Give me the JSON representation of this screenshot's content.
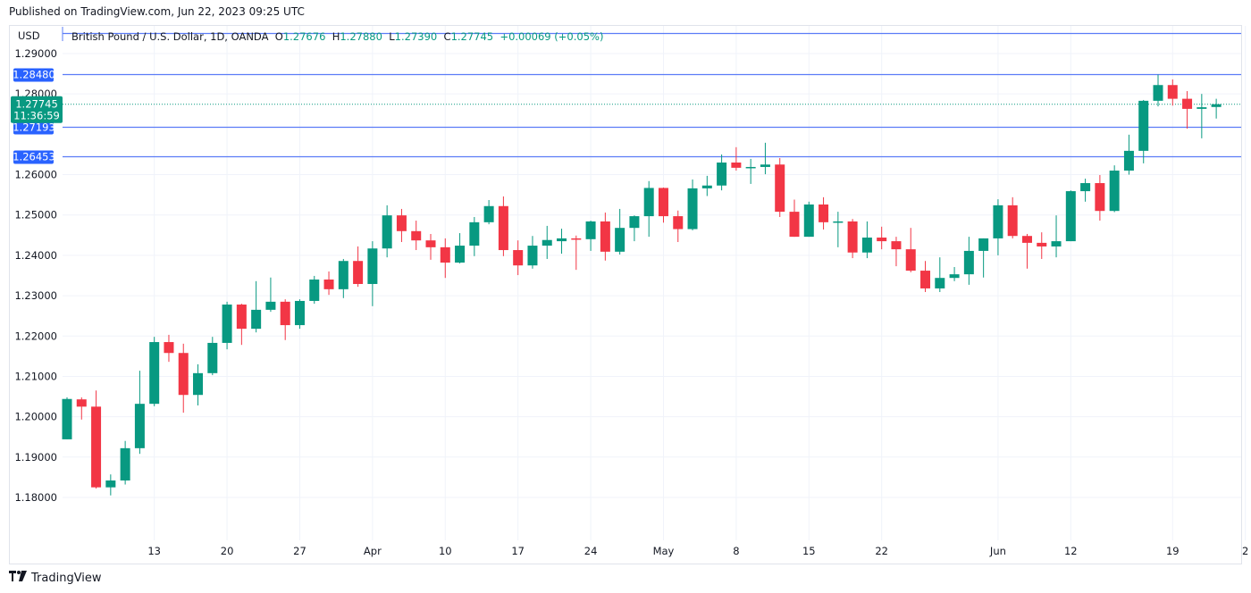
{
  "header": {
    "published": "Published on TradingView.com, Jun 22, 2023 09:25 UTC"
  },
  "legend": {
    "symbol": "British Pound / U.S. Dollar, 1D, OANDA",
    "o_label": "O",
    "o": "1.27676",
    "h_label": "H",
    "h": "1.27880",
    "l_label": "L",
    "l": "1.27390",
    "c_label": "C",
    "c": "1.27745",
    "change": "+0.00069 (+0.05%)"
  },
  "footer": {
    "brand": "TradingView",
    "logo_icon": "tradingview-logo-icon"
  },
  "colors": {
    "up": "#089981",
    "down": "#f23645",
    "hline": "#2962ff",
    "grid": "#f0f3fa"
  },
  "chart_data": {
    "type": "candlestick",
    "title": "British Pound / U.S. Dollar, 1D, OANDA",
    "currency_label": "USD",
    "ylim": [
      1.1715,
      1.2965
    ],
    "y_ticks": [
      "1.29000",
      "1.28000",
      "1.26000",
      "1.25000",
      "1.24000",
      "1.23000",
      "1.22000",
      "1.21000",
      "1.20000",
      "1.19000",
      "1.18000"
    ],
    "x_ticks": [
      {
        "label": "13",
        "index": 6
      },
      {
        "label": "20",
        "index": 11
      },
      {
        "label": "27",
        "index": 16
      },
      {
        "label": "Apr",
        "index": 21
      },
      {
        "label": "10",
        "index": 26
      },
      {
        "label": "17",
        "index": 31
      },
      {
        "label": "24",
        "index": 36
      },
      {
        "label": "May",
        "index": 41
      },
      {
        "label": "8",
        "index": 46
      },
      {
        "label": "15",
        "index": 51
      },
      {
        "label": "22",
        "index": 56
      },
      {
        "label": "Jun",
        "index": 64
      },
      {
        "label": "12",
        "index": 69
      },
      {
        "label": "19",
        "index": 76
      },
      {
        "label": "2",
        "index": 81
      }
    ],
    "horizontal_lines": [
      {
        "price": 1.2951,
        "label": ""
      },
      {
        "price": 1.2848,
        "label": "1.28480"
      },
      {
        "price": 1.27193,
        "label": "1.27193"
      },
      {
        "price": 1.26453,
        "label": "1.26453"
      }
    ],
    "last_price": {
      "price": 1.27745,
      "label": "1.27745",
      "countdown": "11:36:59"
    },
    "ohlc": [
      [
        1.1944,
        1.2048,
        1.1944,
        1.2044
      ],
      [
        1.2043,
        1.2048,
        1.1993,
        1.2025
      ],
      [
        1.2025,
        1.2065,
        1.1822,
        1.1825
      ],
      [
        1.1825,
        1.1857,
        1.1805,
        1.1842
      ],
      [
        1.1842,
        1.194,
        1.1832,
        1.1922
      ],
      [
        1.1922,
        1.2114,
        1.1908,
        1.2032
      ],
      [
        1.2032,
        1.2198,
        1.2026,
        1.2185
      ],
      [
        1.2185,
        1.2203,
        1.2136,
        1.2158
      ],
      [
        1.2158,
        1.2181,
        1.201,
        1.2054
      ],
      [
        1.2054,
        1.213,
        1.2028,
        1.2108
      ],
      [
        1.2108,
        1.2198,
        1.2103,
        1.2183
      ],
      [
        1.2183,
        1.2285,
        1.2167,
        1.2278
      ],
      [
        1.2278,
        1.228,
        1.2178,
        1.2218
      ],
      [
        1.2218,
        1.2336,
        1.2209,
        1.2265
      ],
      [
        1.2265,
        1.2345,
        1.226,
        1.2285
      ],
      [
        1.2285,
        1.2291,
        1.219,
        1.2227
      ],
      [
        1.2227,
        1.2291,
        1.2218,
        1.2287
      ],
      [
        1.2287,
        1.2349,
        1.228,
        1.234
      ],
      [
        1.234,
        1.236,
        1.2302,
        1.2316
      ],
      [
        1.2316,
        1.2391,
        1.2294,
        1.2386
      ],
      [
        1.2386,
        1.2422,
        1.2322,
        1.2329
      ],
      [
        1.2329,
        1.2435,
        1.2274,
        1.2417
      ],
      [
        1.2417,
        1.2524,
        1.2395,
        1.2499
      ],
      [
        1.2499,
        1.2515,
        1.2433,
        1.246
      ],
      [
        1.246,
        1.2486,
        1.2413,
        1.2437
      ],
      [
        1.2437,
        1.2453,
        1.2389,
        1.242
      ],
      [
        1.242,
        1.2442,
        1.2344,
        1.2382
      ],
      [
        1.2382,
        1.2455,
        1.238,
        1.2424
      ],
      [
        1.2424,
        1.2495,
        1.2398,
        1.2482
      ],
      [
        1.2482,
        1.2537,
        1.2477,
        1.2522
      ],
      [
        1.2522,
        1.2546,
        1.2398,
        1.2413
      ],
      [
        1.2413,
        1.2437,
        1.2351,
        1.2375
      ],
      [
        1.2375,
        1.2448,
        1.2367,
        1.2424
      ],
      [
        1.2424,
        1.2473,
        1.2391,
        1.2438
      ],
      [
        1.2435,
        1.2466,
        1.2404,
        1.2442
      ],
      [
        1.2442,
        1.2449,
        1.2364,
        1.244
      ],
      [
        1.244,
        1.2486,
        1.2411,
        1.2484
      ],
      [
        1.2484,
        1.2506,
        1.2387,
        1.2409
      ],
      [
        1.2409,
        1.2515,
        1.2402,
        1.2468
      ],
      [
        1.2468,
        1.2499,
        1.2435,
        1.2497
      ],
      [
        1.2497,
        1.2584,
        1.2446,
        1.2567
      ],
      [
        1.2567,
        1.2568,
        1.2481,
        1.2497
      ],
      [
        1.2497,
        1.2511,
        1.2433,
        1.2465
      ],
      [
        1.2465,
        1.2588,
        1.2462,
        1.2566
      ],
      [
        1.2566,
        1.2597,
        1.2547,
        1.2573
      ],
      [
        1.2573,
        1.265,
        1.2561,
        1.263
      ],
      [
        1.263,
        1.2668,
        1.261,
        1.2617
      ],
      [
        1.2617,
        1.2639,
        1.2577,
        1.2619
      ],
      [
        1.2619,
        1.2679,
        1.2601,
        1.2625
      ],
      [
        1.2625,
        1.2641,
        1.2495,
        1.2508
      ],
      [
        1.2508,
        1.2538,
        1.2446,
        1.2446
      ],
      [
        1.2446,
        1.2533,
        1.2446,
        1.2526
      ],
      [
        1.2526,
        1.2544,
        1.2464,
        1.2482
      ],
      [
        1.2483,
        1.2508,
        1.242,
        1.2484
      ],
      [
        1.2484,
        1.249,
        1.2393,
        1.2407
      ],
      [
        1.2407,
        1.2484,
        1.2393,
        1.2444
      ],
      [
        1.2444,
        1.2471,
        1.2415,
        1.2435
      ],
      [
        1.2435,
        1.2446,
        1.2373,
        1.2415
      ],
      [
        1.2415,
        1.2468,
        1.2358,
        1.2362
      ],
      [
        1.2362,
        1.2386,
        1.2309,
        1.2318
      ],
      [
        1.2318,
        1.2395,
        1.2309,
        1.2344
      ],
      [
        1.2344,
        1.2371,
        1.2336,
        1.2353
      ],
      [
        1.2353,
        1.2446,
        1.2327,
        1.2411
      ],
      [
        1.2411,
        1.2442,
        1.2345,
        1.2442
      ],
      [
        1.2442,
        1.2539,
        1.24,
        1.2524
      ],
      [
        1.2524,
        1.2544,
        1.2442,
        1.2448
      ],
      [
        1.2448,
        1.2453,
        1.2367,
        1.2431
      ],
      [
        1.2431,
        1.2457,
        1.2391,
        1.2422
      ],
      [
        1.2422,
        1.2499,
        1.2395,
        1.2435
      ],
      [
        1.2435,
        1.2561,
        1.2435,
        1.2559
      ],
      [
        1.2559,
        1.259,
        1.2533,
        1.2579
      ],
      [
        1.2579,
        1.2599,
        1.2486,
        1.251
      ],
      [
        1.251,
        1.2623,
        1.2507,
        1.261
      ],
      [
        1.261,
        1.2699,
        1.26,
        1.2659
      ],
      [
        1.2659,
        1.2785,
        1.2628,
        1.2783
      ],
      [
        1.2783,
        1.2848,
        1.2769,
        1.2822
      ],
      [
        1.2822,
        1.2836,
        1.2771,
        1.2788
      ],
      [
        1.2788,
        1.2807,
        1.2714,
        1.2763
      ],
      [
        1.2763,
        1.28,
        1.269,
        1.2767
      ],
      [
        1.27676,
        1.2788,
        1.2739,
        1.27745
      ]
    ]
  }
}
